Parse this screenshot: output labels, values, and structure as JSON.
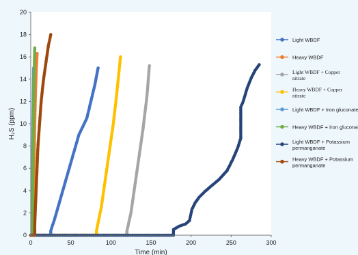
{
  "chart_data": {
    "type": "line",
    "xlabel": "Time (min)",
    "ylabel": "H₂S (ppm)",
    "xlim": [
      0,
      300
    ],
    "ylim": [
      0,
      20
    ],
    "x_ticks": [
      "0",
      "50",
      "100",
      "150",
      "200",
      "250",
      "300"
    ],
    "y_ticks": [
      "0",
      "2",
      "4",
      "6",
      "8",
      "10",
      "12",
      "14",
      "16",
      "18",
      "20"
    ],
    "grid": false,
    "legend_position": "right",
    "series": [
      {
        "name": "Light WBDF",
        "color": "#4472c4",
        "points": [
          [
            0,
            0
          ],
          [
            25,
            0
          ],
          [
            25,
            0.4
          ],
          [
            30,
            1.5
          ],
          [
            40,
            4
          ],
          [
            50,
            6.5
          ],
          [
            60,
            9
          ],
          [
            70,
            10.5
          ],
          [
            75,
            12
          ],
          [
            80,
            13.5
          ],
          [
            84,
            15
          ]
        ]
      },
      {
        "name": "Heavy WBDF",
        "color": "#ed7d31",
        "points": [
          [
            0,
            0
          ],
          [
            4,
            0
          ],
          [
            4,
            6
          ],
          [
            5,
            10
          ],
          [
            6,
            13
          ],
          [
            7,
            15
          ],
          [
            8,
            16.3
          ]
        ]
      },
      {
        "name": "Light WBDF  +  Copper nitrate",
        "color": "#a5a5a5",
        "points": [
          [
            0,
            0
          ],
          [
            120,
            0
          ],
          [
            120,
            0.4
          ],
          [
            125,
            2
          ],
          [
            130,
            4.5
          ],
          [
            135,
            7
          ],
          [
            140,
            9.5
          ],
          [
            145,
            12.5
          ],
          [
            148,
            15.2
          ]
        ]
      },
      {
        "name": "Heavy WBDF  +  Copper nitrate",
        "color": "#ffc000",
        "points": [
          [
            0,
            0
          ],
          [
            82,
            0
          ],
          [
            82,
            0.4
          ],
          [
            88,
            2.5
          ],
          [
            93,
            5
          ],
          [
            98,
            7.5
          ],
          [
            103,
            10
          ],
          [
            107,
            12.5
          ],
          [
            112,
            16
          ]
        ]
      },
      {
        "name": "Light WBDF + Iron gluconate",
        "color": "#5b9bd5",
        "points": [
          [
            0,
            0
          ],
          [
            1.5,
            0
          ],
          [
            1.5,
            2
          ],
          [
            2,
            5
          ],
          [
            2.5,
            9
          ],
          [
            3,
            12
          ],
          [
            3.5,
            15
          ]
        ]
      },
      {
        "name": "Heavy WBDF + Iron gluconat",
        "color": "#70ad47",
        "points": [
          [
            0,
            0
          ],
          [
            2.5,
            0
          ],
          [
            2.5,
            4
          ],
          [
            3,
            8
          ],
          [
            3.5,
            11.5
          ],
          [
            4,
            14
          ],
          [
            5,
            16.8
          ]
        ]
      },
      {
        "name": "Light WBDF + Potassium permanganate",
        "color": "#264478",
        "points": [
          [
            0,
            0
          ],
          [
            178,
            0
          ],
          [
            178,
            0.5
          ],
          [
            185,
            0.8
          ],
          [
            193,
            1
          ],
          [
            198,
            1.3
          ],
          [
            201,
            2.3
          ],
          [
            205,
            2.9
          ],
          [
            210,
            3.4
          ],
          [
            217,
            3.9
          ],
          [
            225,
            4.4
          ],
          [
            235,
            5
          ],
          [
            245,
            5.8
          ],
          [
            252,
            6.8
          ],
          [
            258,
            7.8
          ],
          [
            262,
            8.7
          ],
          [
            262,
            11.5
          ],
          [
            265,
            12
          ],
          [
            270,
            13.2
          ],
          [
            275,
            14.1
          ],
          [
            280,
            14.8
          ],
          [
            285,
            15.3
          ]
        ]
      },
      {
        "name": "Heavy WBDF + Potassium permanganate",
        "color": "#9e480e",
        "points": [
          [
            0,
            0
          ],
          [
            5,
            0
          ],
          [
            5,
            1
          ],
          [
            7,
            4.5
          ],
          [
            9,
            8
          ],
          [
            11,
            10
          ],
          [
            13,
            12
          ],
          [
            16,
            14
          ],
          [
            19,
            15.5
          ],
          [
            22,
            17
          ],
          [
            25,
            18
          ]
        ]
      }
    ]
  }
}
